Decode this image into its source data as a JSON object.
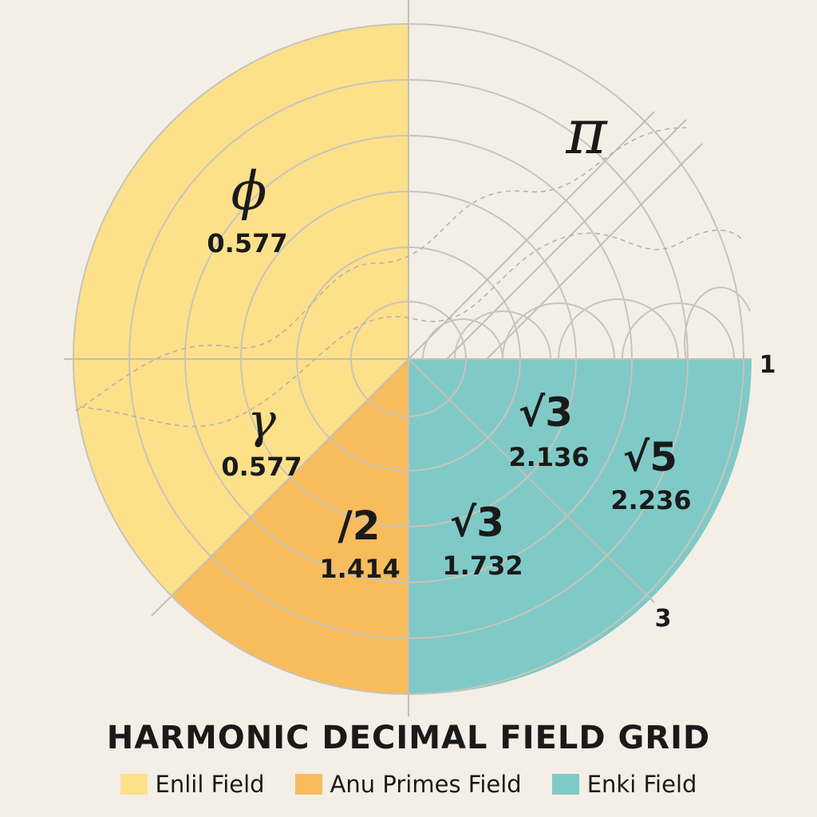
{
  "title": "HARMONIC DECIMAL FIELD GRID",
  "colors": {
    "enlil": "#fde08a",
    "anu": "#f8bc5c",
    "enki": "#7fcac7",
    "background": "#f4efe6",
    "grid": "#c9c4bb"
  },
  "legend": [
    {
      "label": "Enlil Field",
      "color": "#fde08a"
    },
    {
      "label": "Anu Primes Field",
      "color": "#f8bc5c"
    },
    {
      "label": "Enki Field",
      "color": "#7fcac7"
    }
  ],
  "symbols": {
    "phi": {
      "glyph": "ϕ",
      "value": "0.577"
    },
    "pi": {
      "glyph": "π"
    },
    "gamma": {
      "glyph": "γ",
      "value": "0.577"
    },
    "sqrt2": {
      "glyph": "/2",
      "value": "1.414"
    },
    "sqrt3a": {
      "glyph": "√3",
      "value": "1.732"
    },
    "sqrt3b": {
      "glyph": "√3",
      "value": "2.136"
    },
    "sqrt5": {
      "glyph": "√5",
      "value": "2.236"
    }
  },
  "axis_labels": {
    "right": "1",
    "diagonal": "3"
  }
}
